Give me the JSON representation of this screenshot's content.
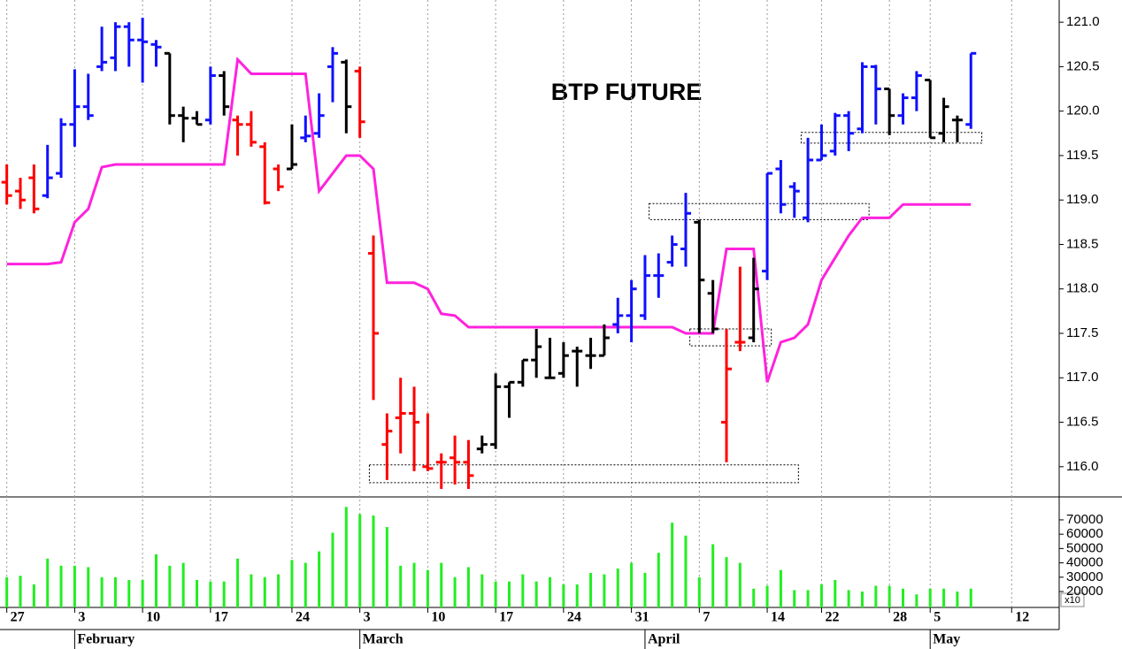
{
  "chart_data": [
    {
      "type": "ohlc",
      "title": "BTP FUTURE",
      "x": [
        0,
        1,
        2,
        3,
        4,
        5,
        6,
        7,
        8,
        9,
        10,
        11,
        12,
        13,
        14,
        15,
        16,
        17,
        18,
        19,
        20,
        21,
        22,
        23,
        24,
        25,
        26,
        27,
        28,
        29,
        30,
        31,
        32,
        33,
        34,
        35,
        36,
        37,
        38,
        39,
        40,
        41,
        42,
        43,
        44,
        45,
        46,
        47,
        48,
        49,
        50,
        51,
        52,
        53,
        54,
        55,
        56,
        57,
        58,
        59,
        60,
        61,
        62,
        63,
        64,
        65,
        66,
        67,
        68,
        69,
        70,
        71
      ],
      "open": [
        119.2,
        119.1,
        119.25,
        119.05,
        119.3,
        119.85,
        120.05,
        120.5,
        120.6,
        120.95,
        120.8,
        120.75,
        120.65,
        119.95,
        119.92,
        119.9,
        120.4,
        119.9,
        119.85,
        119.6,
        119.35,
        119.35,
        119.7,
        119.75,
        120.5,
        120.55,
        120.45,
        118.4,
        116.25,
        116.55,
        116.6,
        116.0,
        116.05,
        116.1,
        116.05,
        116.2,
        116.25,
        116.9,
        116.95,
        117.2,
        117.0,
        117.05,
        117.3,
        117.25,
        117.25,
        117.6,
        117.7,
        117.7,
        118.15,
        118.3,
        118.45,
        118.75,
        117.95,
        116.5,
        117.4,
        117.45,
        118.2,
        119.35,
        119.15,
        118.8,
        119.45,
        119.55,
        119.95,
        119.8,
        120.5,
        120.25,
        119.95,
        120.15,
        120.35,
        119.75,
        119.9,
        119.85
      ],
      "high": [
        119.4,
        119.25,
        119.4,
        119.62,
        119.92,
        120.47,
        120.42,
        120.95,
        121.0,
        121.0,
        121.05,
        120.8,
        120.65,
        120.05,
        120.0,
        120.5,
        120.45,
        119.95,
        120.0,
        119.65,
        119.4,
        119.85,
        119.95,
        120.2,
        120.72,
        120.58,
        120.5,
        118.6,
        116.6,
        117.0,
        116.9,
        116.6,
        116.15,
        116.35,
        116.3,
        116.35,
        117.05,
        116.95,
        117.2,
        117.55,
        117.45,
        117.4,
        117.35,
        117.45,
        117.6,
        117.9,
        118.1,
        118.38,
        118.4,
        118.6,
        119.08,
        118.78,
        118.1,
        117.55,
        118.25,
        118.35,
        119.3,
        119.45,
        119.2,
        119.7,
        119.85,
        119.98,
        120.0,
        120.55,
        120.52,
        120.25,
        120.2,
        120.45,
        120.35,
        120.15,
        119.95,
        120.65
      ],
      "low": [
        118.95,
        118.9,
        118.85,
        119.02,
        119.25,
        119.6,
        119.9,
        120.45,
        120.45,
        120.5,
        120.32,
        120.5,
        119.85,
        119.65,
        119.85,
        119.85,
        119.95,
        119.5,
        119.6,
        118.95,
        119.1,
        119.35,
        119.65,
        119.7,
        120.1,
        119.75,
        119.7,
        116.75,
        115.85,
        116.15,
        115.95,
        115.95,
        115.75,
        115.8,
        115.75,
        116.15,
        116.2,
        116.55,
        116.9,
        117.0,
        117.0,
        117.0,
        116.9,
        117.1,
        117.25,
        117.5,
        117.4,
        117.65,
        117.9,
        118.25,
        118.25,
        117.5,
        117.5,
        116.05,
        117.3,
        117.4,
        118.1,
        118.85,
        118.8,
        118.75,
        119.45,
        119.5,
        119.55,
        119.75,
        119.85,
        119.73,
        119.85,
        120.0,
        119.7,
        119.65,
        119.65,
        119.8
      ],
      "close": [
        119.05,
        119.0,
        118.9,
        119.25,
        119.85,
        120.05,
        119.95,
        120.55,
        120.95,
        120.8,
        120.78,
        120.72,
        119.95,
        119.92,
        119.85,
        120.4,
        120.05,
        119.85,
        119.65,
        118.97,
        119.15,
        119.4,
        119.72,
        119.95,
        120.65,
        120.05,
        119.88,
        117.5,
        116.4,
        116.6,
        116.5,
        115.98,
        116.05,
        116.05,
        115.9,
        116.25,
        116.9,
        116.95,
        117.2,
        117.35,
        117.0,
        117.25,
        117.3,
        117.25,
        117.45,
        117.7,
        118.0,
        118.15,
        118.15,
        118.5,
        118.85,
        118.1,
        117.55,
        117.1,
        117.4,
        118.0,
        119.3,
        118.95,
        119.1,
        119.45,
        119.5,
        119.95,
        119.75,
        120.5,
        120.25,
        119.95,
        120.15,
        120.4,
        119.7,
        120.05,
        119.9,
        120.65
      ],
      "bar_colors": [
        "#ff0000",
        "#ff0000",
        "#ff0000",
        "#1010ff",
        "#1010ff",
        "#1010ff",
        "#1010ff",
        "#1010ff",
        "#1010ff",
        "#1010ff",
        "#1010ff",
        "#1010ff",
        "#000000",
        "#000000",
        "#000000",
        "#1010ff",
        "#000000",
        "#ff0000",
        "#ff0000",
        "#ff0000",
        "#ff0000",
        "#000000",
        "#1010ff",
        "#1010ff",
        "#1010ff",
        "#000000",
        "#ff0000",
        "#ff0000",
        "#ff0000",
        "#ff0000",
        "#ff0000",
        "#ff0000",
        "#ff0000",
        "#ff0000",
        "#ff0000",
        "#000000",
        "#000000",
        "#000000",
        "#000000",
        "#000000",
        "#000000",
        "#000000",
        "#000000",
        "#000000",
        "#000000",
        "#1010ff",
        "#1010ff",
        "#1010ff",
        "#1010ff",
        "#1010ff",
        "#1010ff",
        "#000000",
        "#000000",
        "#ff0000",
        "#ff0000",
        "#000000",
        "#1010ff",
        "#1010ff",
        "#1010ff",
        "#1010ff",
        "#1010ff",
        "#1010ff",
        "#1010ff",
        "#1010ff",
        "#1010ff",
        "#000000",
        "#1010ff",
        "#1010ff",
        "#000000",
        "#000000",
        "#000000",
        "#1010ff"
      ],
      "line": {
        "color": "#ff22dd",
        "values": [
          118.28,
          118.28,
          118.28,
          118.28,
          118.3,
          118.75,
          118.9,
          119.37,
          119.4,
          119.4,
          119.4,
          119.4,
          119.4,
          119.4,
          119.4,
          119.4,
          119.4,
          120.58,
          120.42,
          120.42,
          120.42,
          120.42,
          120.42,
          119.1,
          119.3,
          119.5,
          119.5,
          119.35,
          118.07,
          118.07,
          118.07,
          118.0,
          117.72,
          117.7,
          117.57,
          117.57,
          117.57,
          117.57,
          117.57,
          117.57,
          117.57,
          117.57,
          117.57,
          117.57,
          117.57,
          117.57,
          117.57,
          117.57,
          117.57,
          117.57,
          117.5,
          117.5,
          117.5,
          118.45,
          118.45,
          118.45,
          116.95,
          117.4,
          117.45,
          117.6,
          118.1,
          118.35,
          118.6,
          118.8,
          118.8,
          118.8,
          118.95,
          118.95,
          118.95,
          118.95,
          118.95,
          118.95
        ]
      },
      "zones": [
        {
          "x": [
            26.7,
            58.3
          ],
          "y": [
            115.82,
            116.02
          ]
        },
        {
          "x": [
            47.3,
            63.5
          ],
          "y": [
            118.78,
            118.96
          ]
        },
        {
          "x": [
            50.3,
            56.3
          ],
          "y": [
            117.36,
            117.55
          ]
        },
        {
          "x": [
            58.5,
            71.8
          ],
          "y": [
            119.64,
            119.76
          ]
        }
      ],
      "xlim": [
        -0.5,
        77.5
      ],
      "ylim": [
        115.66,
        121.25
      ],
      "yticks": [
        {
          "value": 116,
          "label": "116.0"
        },
        {
          "value": 116.5,
          "label": "116.5"
        },
        {
          "value": 117,
          "label": "117.0"
        },
        {
          "value": 117.5,
          "label": "117.5"
        },
        {
          "value": 118,
          "label": "118.0"
        },
        {
          "value": 118.5,
          "label": "118.5"
        },
        {
          "value": 119,
          "label": "119.0"
        },
        {
          "value": 119.5,
          "label": "119.5"
        },
        {
          "value": 120,
          "label": "120.0"
        },
        {
          "value": 120.5,
          "label": "120.5"
        },
        {
          "value": 121,
          "label": "121.0"
        }
      ],
      "xticks": [
        {
          "value": 0,
          "label": "27"
        },
        {
          "value": 5,
          "label": "3"
        },
        {
          "value": 10,
          "label": "10"
        },
        {
          "value": 15,
          "label": "17"
        },
        {
          "value": 21,
          "label": "24"
        },
        {
          "value": 26,
          "label": "3"
        },
        {
          "value": 31,
          "label": "10"
        },
        {
          "value": 36,
          "label": "17"
        },
        {
          "value": 41,
          "label": "24"
        },
        {
          "value": 46,
          "label": "31"
        },
        {
          "value": 51,
          "label": "7"
        },
        {
          "value": 56,
          "label": "14"
        },
        {
          "value": 60,
          "label": "22"
        },
        {
          "value": 65,
          "label": "28"
        },
        {
          "value": 68,
          "label": "5"
        },
        {
          "value": 74,
          "label": "12"
        }
      ],
      "month_labels": [
        {
          "value": 5,
          "label": "February"
        },
        {
          "value": 26,
          "label": "March"
        },
        {
          "value": 47,
          "label": "April"
        },
        {
          "value": 68,
          "label": "May"
        }
      ],
      "grid": true
    },
    {
      "type": "bar",
      "color": "#22ee22",
      "values": [
        30000,
        31000,
        25000,
        43000,
        38000,
        38000,
        37000,
        30000,
        30000,
        28000,
        28000,
        46000,
        38000,
        40000,
        28000,
        27000,
        27000,
        43000,
        32000,
        30000,
        32000,
        42000,
        40000,
        48000,
        61000,
        79000,
        74000,
        73000,
        65000,
        38000,
        40000,
        35000,
        40000,
        30000,
        37000,
        32000,
        27000,
        27000,
        32000,
        27000,
        30000,
        25000,
        25000,
        33000,
        32000,
        36000,
        40000,
        33000,
        47000,
        68000,
        59000,
        30000,
        53000,
        44000,
        40000,
        22000,
        24000,
        35000,
        21000,
        21000,
        25000,
        28000,
        21000,
        20000,
        24000,
        24000,
        22000,
        18000,
        22000,
        22000,
        20000,
        22000
      ],
      "ylim": [
        8900,
        86000
      ],
      "yticks": [
        20000,
        30000,
        40000,
        50000,
        60000,
        70000
      ],
      "unit_label": "x10"
    }
  ]
}
